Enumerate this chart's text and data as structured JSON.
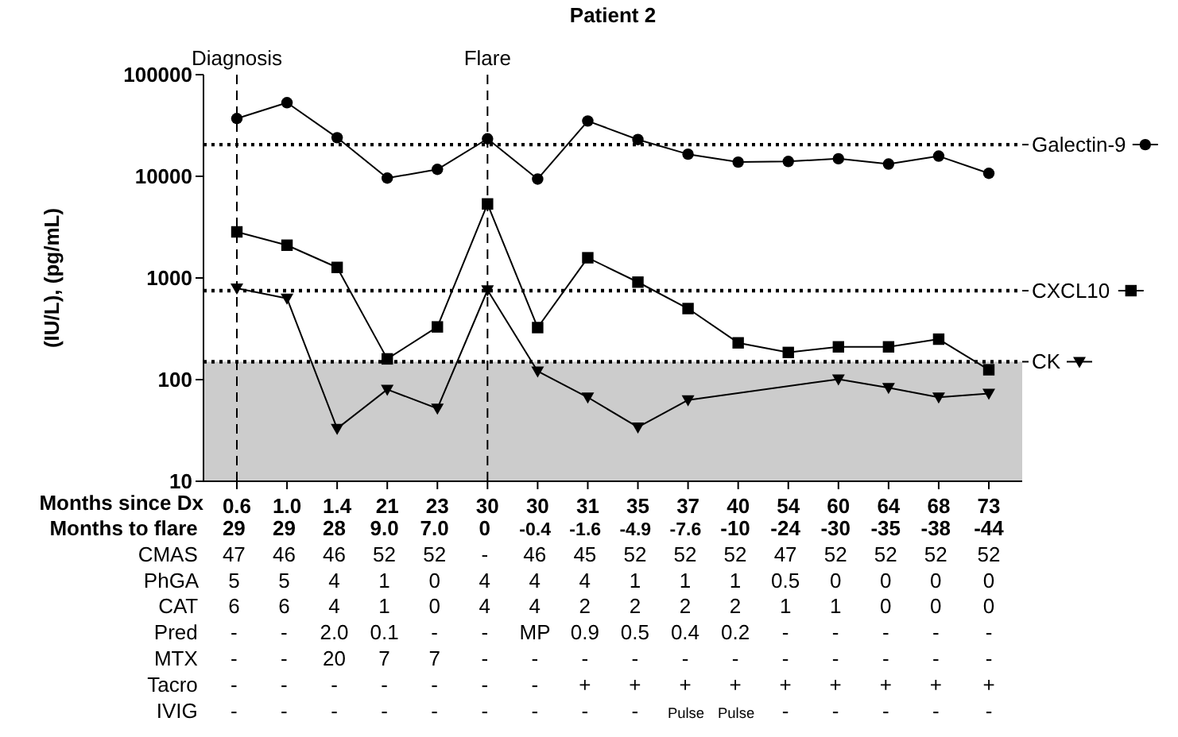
{
  "chart_data": {
    "type": "line",
    "title": "Patient 2",
    "ylabel": "(IU/L), (pg/mL)",
    "xlabel": "Months since Dx",
    "categories": [
      "0.6",
      "1.0",
      "1.4",
      "21",
      "23",
      "30",
      "30",
      "31",
      "35",
      "37",
      "40",
      "54",
      "60",
      "64",
      "68",
      "73"
    ],
    "series": [
      {
        "name": "Galectin-9",
        "color": "#000000",
        "marker": "circle",
        "values": [
          37000,
          53000,
          24000,
          9600,
          11700,
          23400,
          9400,
          35000,
          23000,
          16500,
          13800,
          14000,
          14900,
          13200,
          15800,
          10700
        ]
      },
      {
        "name": "CXCL10",
        "color": "#000000",
        "marker": "square",
        "values": [
          2840,
          2100,
          1270,
          160,
          330,
          5350,
          325,
          1580,
          910,
          500,
          230,
          185,
          210,
          210,
          250,
          125
        ]
      },
      {
        "name": "CK",
        "color": "#000000",
        "marker": "triangle",
        "values": [
          790,
          630,
          33,
          80,
          52,
          760,
          121,
          67,
          34,
          63,
          null,
          null,
          101,
          83,
          67,
          73
        ]
      }
    ],
    "log": true,
    "ylim": [
      10,
      100000
    ],
    "yticks": [
      10,
      100,
      1000,
      10000,
      100000
    ],
    "grid": false,
    "legend": "right",
    "line_style": "solid",
    "ref_lines": [
      {
        "axis": "y",
        "value": 20500,
        "line_style": "dotted",
        "color": "#000000"
      },
      {
        "axis": "y",
        "value": 750,
        "line_style": "dotted",
        "color": "#000000"
      },
      {
        "axis": "y",
        "value": 150,
        "line_style": "dotted",
        "color": "#000000"
      },
      {
        "axis": "x",
        "value": "0.6",
        "label": "Diagnosis",
        "line_style": "dashed",
        "color": "#000000"
      },
      {
        "axis": "x",
        "value": "30",
        "label": "Flare",
        "line_style": "dashed",
        "color": "#000000"
      }
    ],
    "bands": [
      {
        "axis": "y",
        "from": 10,
        "to": 150,
        "color": "#cccccc"
      }
    ],
    "annotations": [
      "Months to flare 29 29 28 9.0 7.0 0 -0.4 -1.6 -4.9 -7.6 -10 -24 -30 -35 -38 -44",
      "CMAS 47 46 46 52 52 - 46 45 52 52 52 47 52 52 52 52",
      "PhGA 5 5 4 1 0 4 4 4 1 1 1 0.5 0 0 0 0",
      "CAT 6 6 4 1 0 4 4 2 2 2 2 1 1 0 0 0",
      "Pred - - 2.0 0.1 - - MP 0.9 0.5 0.4 0.2 - - - - -",
      "MTX - - 20 7 7 - - - - - - - - - - -",
      "Tacro - - - - - - - + + + + + + + + +",
      "IVIG - - - - - - - - - Pulse Pulse - - - - -"
    ]
  }
}
